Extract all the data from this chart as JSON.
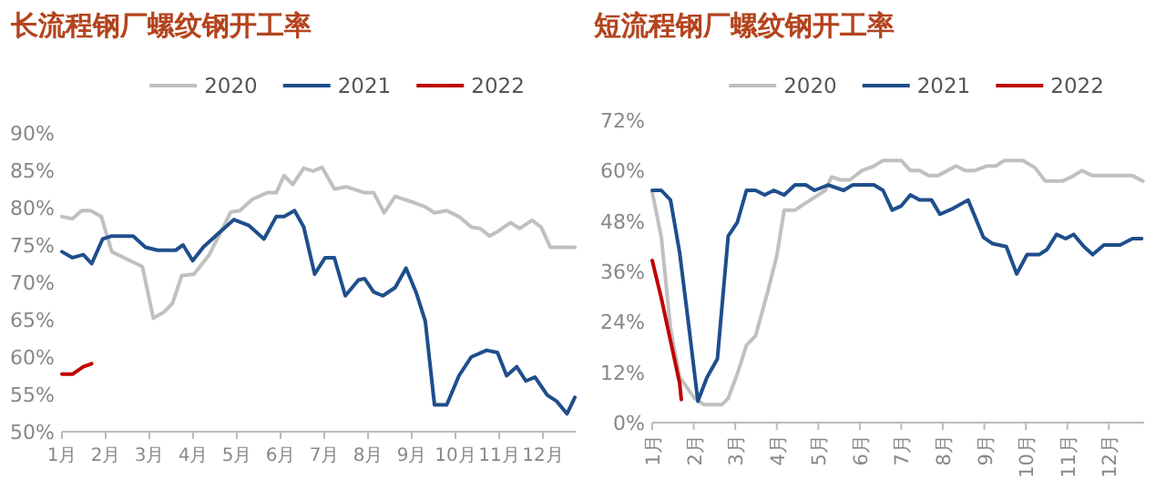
{
  "chart_data": [
    {
      "type": "line",
      "title": "长流程钢厂螺纹钢开工率",
      "legend": "top",
      "grid": false,
      "xlim": [
        1,
        12.75
      ],
      "xticks": [
        {
          "value": 1,
          "label": "1月"
        },
        {
          "value": 2,
          "label": "2月"
        },
        {
          "value": 3,
          "label": "3月"
        },
        {
          "value": 4,
          "label": "4月"
        },
        {
          "value": 5,
          "label": "5月"
        },
        {
          "value": 6,
          "label": "6月"
        },
        {
          "value": 7,
          "label": "7月"
        },
        {
          "value": 8,
          "label": "8月"
        },
        {
          "value": 9,
          "label": "9月"
        },
        {
          "value": 10,
          "label": "10月"
        },
        {
          "value": 11,
          "label": "11月"
        },
        {
          "value": 12,
          "label": "12月"
        }
      ],
      "ylim": [
        50,
        90
      ],
      "yticks": [
        {
          "value": 50,
          "label": "50%"
        },
        {
          "value": 55,
          "label": "55%"
        },
        {
          "value": 60,
          "label": "60%"
        },
        {
          "value": 65,
          "label": "65%"
        },
        {
          "value": 70,
          "label": "70%"
        },
        {
          "value": 75,
          "label": "75%"
        },
        {
          "value": 80,
          "label": "80%"
        },
        {
          "value": 85,
          "label": "85%"
        },
        {
          "value": 90,
          "label": "90%"
        }
      ],
      "series": [
        {
          "name": "2020",
          "color": "#c0c0c0",
          "x": [
            1.0,
            1.24,
            1.45,
            1.65,
            1.9,
            2.14,
            2.56,
            2.84,
            3.09,
            3.33,
            3.53,
            3.74,
            4.02,
            4.37,
            4.86,
            5.07,
            5.35,
            5.69,
            5.9,
            6.08,
            6.28,
            6.53,
            6.74,
            6.95,
            7.23,
            7.51,
            7.92,
            8.13,
            8.37,
            8.62,
            9.04,
            9.31,
            9.52,
            9.8,
            10.08,
            10.36,
            10.57,
            10.78,
            10.99,
            11.26,
            11.47,
            11.75,
            11.96,
            12.17,
            12.73
          ],
          "values": [
            78.8,
            78.5,
            79.6,
            79.6,
            78.8,
            74.1,
            72.9,
            72.1,
            65.2,
            66.0,
            67.2,
            70.9,
            71.1,
            73.7,
            79.4,
            79.6,
            81.1,
            82.0,
            82.0,
            84.3,
            83.1,
            85.3,
            84.9,
            85.4,
            82.5,
            82.8,
            82.0,
            82.0,
            79.3,
            81.5,
            80.7,
            80.1,
            79.3,
            79.6,
            78.8,
            77.4,
            77.2,
            76.2,
            76.9,
            78.0,
            77.2,
            78.3,
            77.4,
            74.7,
            74.7
          ]
        },
        {
          "name": "2021",
          "color": "#1f4e8c",
          "x": [
            1.0,
            1.24,
            1.49,
            1.68,
            1.93,
            2.14,
            2.63,
            2.91,
            3.19,
            3.6,
            3.77,
            3.99,
            4.23,
            4.51,
            4.93,
            5.28,
            5.62,
            5.9,
            6.08,
            6.32,
            6.53,
            6.78,
            7.02,
            7.23,
            7.48,
            7.78,
            7.92,
            8.13,
            8.34,
            8.62,
            8.87,
            9.11,
            9.31,
            9.52,
            9.8,
            10.08,
            10.36,
            10.71,
            10.96,
            11.17,
            11.4,
            11.61,
            11.82,
            12.1,
            12.31,
            12.55,
            12.73
          ],
          "values": [
            74.1,
            73.3,
            73.7,
            72.5,
            75.8,
            76.2,
            76.2,
            74.7,
            74.3,
            74.3,
            75.0,
            72.9,
            74.7,
            76.2,
            78.4,
            77.6,
            75.8,
            78.8,
            78.8,
            79.6,
            77.4,
            71.1,
            73.3,
            73.3,
            68.2,
            70.3,
            70.5,
            68.7,
            68.2,
            69.3,
            71.9,
            68.5,
            64.8,
            53.6,
            53.6,
            57.5,
            60.0,
            60.9,
            60.6,
            57.5,
            58.7,
            56.8,
            57.3,
            54.9,
            54.1,
            52.4,
            54.6
          ]
        },
        {
          "name": "2022",
          "color": "#c00000",
          "x": [
            1.0,
            1.24,
            1.49,
            1.68
          ],
          "values": [
            57.7,
            57.7,
            58.7,
            59.1
          ]
        }
      ]
    },
    {
      "type": "line",
      "title": "短流程钢厂螺纹钢开工率",
      "legend": "top",
      "grid": false,
      "xlim": [
        1,
        12.85
      ],
      "xticks": [
        {
          "value": 1,
          "label": "1月"
        },
        {
          "value": 2,
          "label": "2月"
        },
        {
          "value": 3,
          "label": "3月"
        },
        {
          "value": 4,
          "label": "4月"
        },
        {
          "value": 5,
          "label": "5月"
        },
        {
          "value": 6,
          "label": "6月"
        },
        {
          "value": 7,
          "label": "7月"
        },
        {
          "value": 8,
          "label": "8月"
        },
        {
          "value": 9,
          "label": "9月"
        },
        {
          "value": 10,
          "label": "10月"
        },
        {
          "value": 11,
          "label": "11月"
        },
        {
          "value": 12,
          "label": "12月"
        }
      ],
      "ylim": [
        0,
        72
      ],
      "yticks": [
        {
          "value": 0,
          "label": "0%"
        },
        {
          "value": 12,
          "label": "12%"
        },
        {
          "value": 24,
          "label": "24%"
        },
        {
          "value": 36,
          "label": "36%"
        },
        {
          "value": 48,
          "label": "48%"
        },
        {
          "value": 60,
          "label": "60%"
        },
        {
          "value": 72,
          "label": "72%"
        }
      ],
      "series": [
        {
          "name": "2020",
          "color": "#c0c0c0",
          "x": [
            1.0,
            1.22,
            1.44,
            1.66,
            2.02,
            2.24,
            2.68,
            2.83,
            3.05,
            3.27,
            3.49,
            3.78,
            4.0,
            4.18,
            4.44,
            4.81,
            5.17,
            5.32,
            5.54,
            5.76,
            6.05,
            6.34,
            6.56,
            7.0,
            7.22,
            7.44,
            7.66,
            7.88,
            8.32,
            8.54,
            8.76,
            9.05,
            9.27,
            9.49,
            9.93,
            10.22,
            10.47,
            10.88,
            11.1,
            11.35,
            11.61,
            12.2,
            12.57,
            12.82
          ],
          "values": [
            54.9,
            44.1,
            22.4,
            10.8,
            5.8,
            4.3,
            4.3,
            5.8,
            11.6,
            18.4,
            20.7,
            31.1,
            39.7,
            50.6,
            50.6,
            53.0,
            55.3,
            58.5,
            57.8,
            57.8,
            60.0,
            61.1,
            62.4,
            62.4,
            60.0,
            60.0,
            58.8,
            58.8,
            61.1,
            60.0,
            60.0,
            61.1,
            61.1,
            62.4,
            62.4,
            60.7,
            57.5,
            57.5,
            58.5,
            60.0,
            58.8,
            58.8,
            58.8,
            57.5
          ]
        },
        {
          "name": "2021",
          "color": "#1f4e8c",
          "x": [
            1.0,
            1.22,
            1.44,
            1.66,
            1.88,
            2.1,
            2.32,
            2.57,
            2.83,
            3.05,
            3.27,
            3.49,
            3.71,
            3.93,
            4.18,
            4.44,
            4.7,
            4.91,
            5.24,
            5.61,
            5.83,
            6.34,
            6.56,
            6.78,
            7.0,
            7.22,
            7.44,
            7.73,
            7.93,
            8.25,
            8.61,
            8.98,
            9.2,
            9.53,
            9.78,
            10.03,
            10.32,
            10.51,
            10.74,
            10.96,
            11.15,
            11.4,
            11.61,
            11.88,
            12.27,
            12.57,
            12.79
          ],
          "values": [
            55.3,
            55.3,
            53.0,
            40.5,
            23.1,
            5.1,
            10.8,
            15.2,
            44.4,
            47.7,
            55.3,
            55.3,
            54.2,
            55.3,
            54.2,
            56.6,
            56.6,
            55.3,
            56.6,
            55.3,
            56.6,
            56.6,
            55.3,
            50.6,
            51.6,
            54.2,
            53.0,
            53.0,
            49.6,
            51.0,
            53.0,
            44.1,
            42.6,
            41.9,
            35.4,
            40.0,
            40.0,
            41.2,
            44.8,
            43.8,
            44.8,
            41.9,
            40.0,
            42.3,
            42.3,
            43.8,
            43.8
          ]
        },
        {
          "name": "2022",
          "color": "#c00000",
          "x": [
            1.0,
            1.22,
            1.44,
            1.66,
            1.7
          ],
          "values": [
            38.6,
            29.6,
            19.5,
            9.4,
            5.5
          ]
        }
      ]
    }
  ]
}
